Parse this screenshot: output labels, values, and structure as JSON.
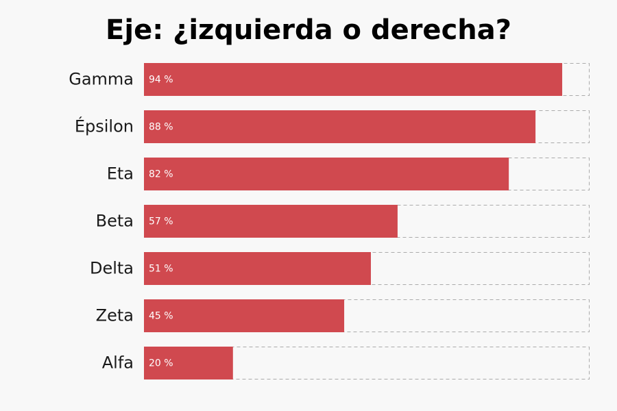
{
  "chart_data": {
    "type": "bar",
    "orientation": "horizontal",
    "title": "Eje: ¿izquierda o derecha?",
    "xlabel": "",
    "ylabel": "",
    "categories": [
      "Gamma",
      "Épsilon",
      "Eta",
      "Beta",
      "Delta",
      "Zeta",
      "Alfa"
    ],
    "values": [
      94,
      88,
      82,
      57,
      51,
      45,
      20
    ],
    "value_labels": [
      "94 %",
      "88 %",
      "82 %",
      "57 %",
      "51 %",
      "45 %",
      "20 %"
    ],
    "xlim": [
      0,
      100
    ],
    "unit": "%",
    "grid": false,
    "legend": "none",
    "bar_color": "#d0494f",
    "track_border_color": "#aaaaaa",
    "background_color": "#f8f8f8"
  }
}
